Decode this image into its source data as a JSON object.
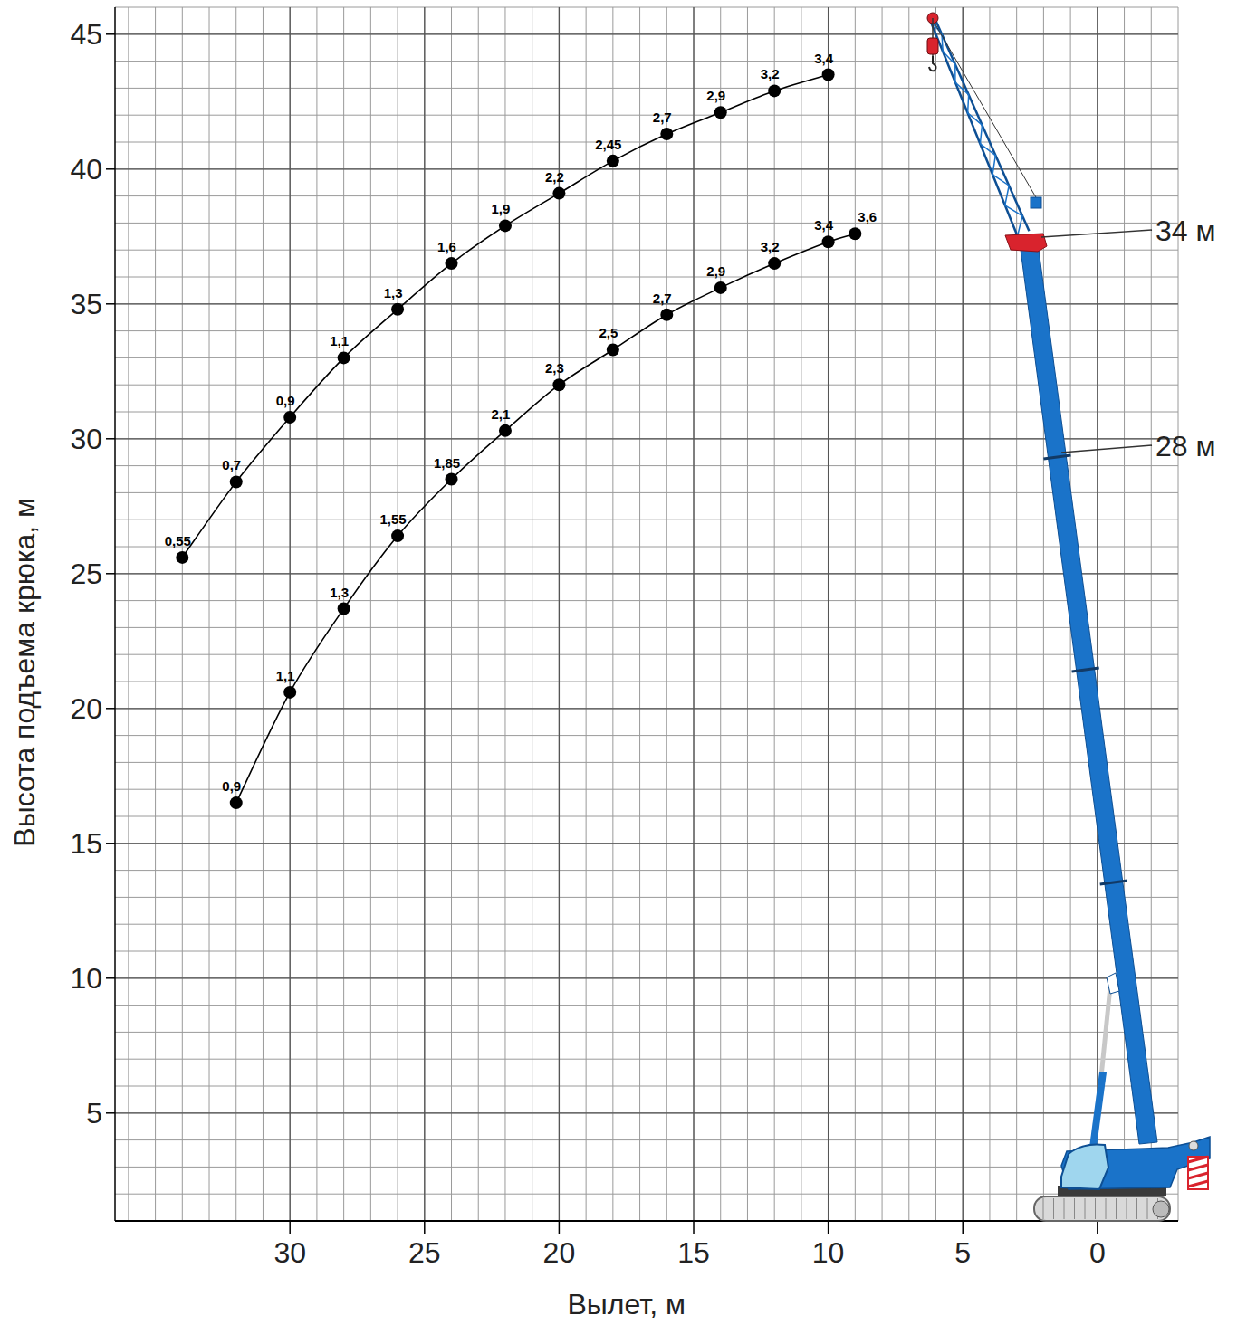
{
  "chart_data": {
    "type": "line",
    "x_label": "Вылет, м",
    "y_label": "Высота подъема крюка, м",
    "xlim": [
      36.5,
      -3
    ],
    "ylim": [
      1,
      46
    ],
    "xticks": [
      0,
      5,
      10,
      15,
      20,
      25,
      30
    ],
    "yticks": [
      5,
      10,
      15,
      20,
      25,
      30,
      35,
      40,
      45
    ],
    "grid": true,
    "marker": "circle",
    "series": [
      {
        "name": "34 м",
        "color": "#000000",
        "x": [
          34,
          32,
          30,
          28,
          26,
          24,
          22,
          20,
          18,
          16,
          14,
          12,
          10
        ],
        "values": [
          25.6,
          28.4,
          30.8,
          33.0,
          34.8,
          36.5,
          37.9,
          39.1,
          40.3,
          41.3,
          42.1,
          42.9,
          43.5
        ],
        "load_labels": [
          "0,55",
          "0,7",
          "0,9",
          "1,1",
          "1,3",
          "1,6",
          "1,9",
          "2,2",
          "2,45",
          "2,7",
          "2,9",
          "3,2",
          "3,4"
        ]
      },
      {
        "name": "28 м",
        "color": "#000000",
        "x": [
          32,
          30,
          28,
          26,
          24,
          22,
          20,
          18,
          16,
          14,
          12,
          10,
          9
        ],
        "values": [
          16.5,
          20.6,
          23.7,
          26.4,
          28.5,
          30.3,
          32.0,
          33.3,
          34.6,
          35.6,
          36.5,
          37.3,
          37.6
        ],
        "load_labels": [
          "0,9",
          "1,1",
          "1,3",
          "1,55",
          "1,85",
          "2,1",
          "2,3",
          "2,5",
          "2,7",
          "2,9",
          "3,2",
          "3,4",
          "3,6"
        ]
      }
    ]
  }
}
